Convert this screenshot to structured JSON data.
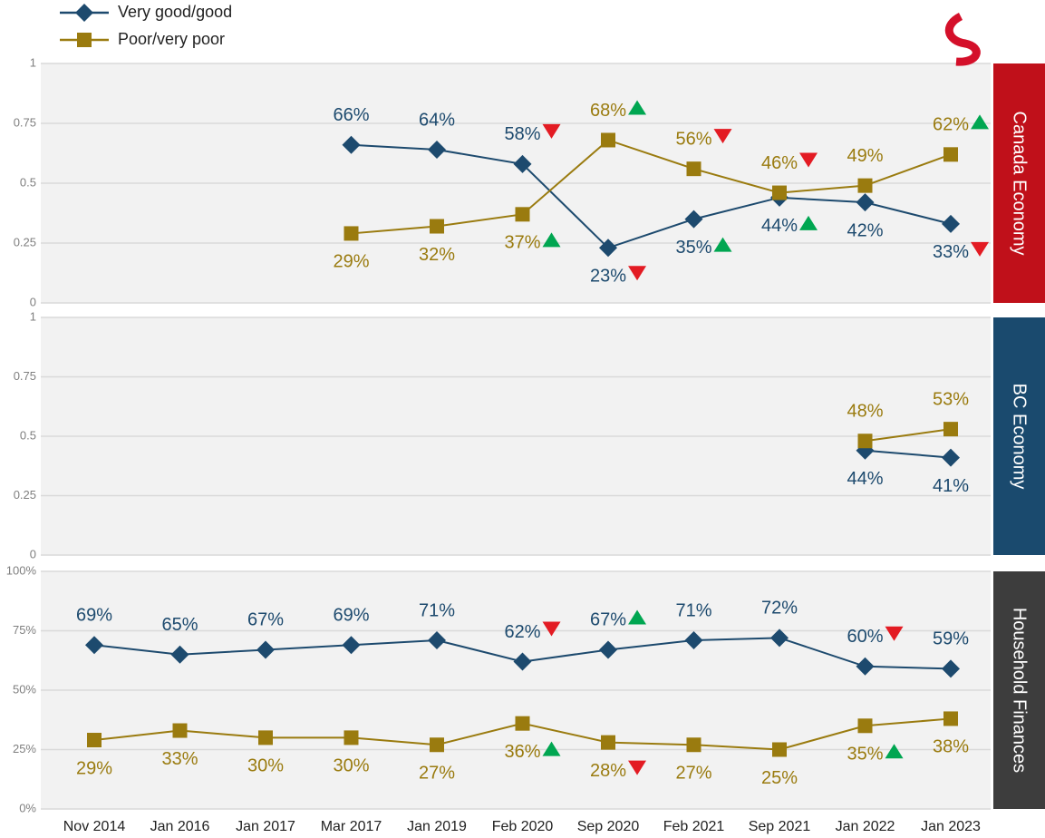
{
  "chart_data": [
    {
      "type": "line",
      "title": "Canada Economy",
      "side_color": "#c0101a",
      "ylim": [
        0,
        1
      ],
      "yticks": [
        0,
        0.25,
        0.5,
        0.75,
        1
      ],
      "grid": true,
      "series": [
        {
          "name": "Very good/good",
          "color": "#1d4a6e",
          "marker": "diamond",
          "values": [
            null,
            null,
            null,
            0.66,
            0.64,
            0.58,
            0.23,
            0.35,
            0.44,
            0.42,
            0.33
          ],
          "value_labels": [
            null,
            null,
            null,
            "66%",
            "64%",
            "58%",
            "23%",
            "35%",
            "44%",
            "42%",
            "33%"
          ],
          "trend": [
            null,
            null,
            null,
            null,
            null,
            "down",
            "down",
            "up",
            "up",
            null,
            "down"
          ]
        },
        {
          "name": "Poor/very poor",
          "color": "#9a7b0f",
          "marker": "square",
          "values": [
            null,
            null,
            null,
            0.29,
            0.32,
            0.37,
            0.68,
            0.56,
            0.46,
            0.49,
            0.62
          ],
          "value_labels": [
            null,
            null,
            null,
            "29%",
            "32%",
            "37%",
            "68%",
            "56%",
            "46%",
            "49%",
            "62%"
          ],
          "trend": [
            null,
            null,
            null,
            null,
            null,
            "up",
            "up",
            "down",
            "down",
            null,
            "up"
          ]
        }
      ]
    },
    {
      "type": "line",
      "title": "BC Economy",
      "side_color": "#1a4a6e",
      "ylim": [
        0,
        1
      ],
      "yticks": [
        0,
        0.25,
        0.5,
        0.75,
        1
      ],
      "grid": true,
      "series": [
        {
          "color": "#1d4a6e",
          "marker": "diamond",
          "values": [
            null,
            null,
            null,
            null,
            null,
            null,
            null,
            null,
            null,
            0.44,
            0.41
          ],
          "value_labels": [
            null,
            null,
            null,
            null,
            null,
            null,
            null,
            null,
            null,
            "44%",
            "41%"
          ]
        },
        {
          "color": "#9a7b0f",
          "marker": "square",
          "values": [
            null,
            null,
            null,
            null,
            null,
            null,
            null,
            null,
            null,
            0.48,
            0.53
          ],
          "value_labels": [
            null,
            null,
            null,
            null,
            null,
            null,
            null,
            null,
            null,
            "48%",
            "53%"
          ]
        }
      ]
    },
    {
      "type": "line",
      "title": "Household Finances",
      "side_color": "#3d3d3d",
      "categories": [
        "Nov 2014",
        "Jan 2016",
        "Jan 2017",
        "Mar 2017",
        "Jan 2019",
        "Feb 2020",
        "Sep 2020",
        "Feb 2021",
        "Sep 2021",
        "Jan 2022",
        "Jan 2023"
      ],
      "ylim": [
        0,
        100
      ],
      "yticks": [
        {
          "value": 0,
          "label": "0%"
        },
        {
          "value": 25,
          "label": "25%"
        },
        {
          "value": 50,
          "label": "50%"
        },
        {
          "value": 75,
          "label": "75%"
        },
        {
          "value": 100,
          "label": "100%"
        }
      ],
      "grid": true,
      "series": [
        {
          "color": "#1d4a6e",
          "marker": "diamond",
          "values": [
            69,
            65,
            67,
            69,
            71,
            62,
            67,
            71,
            72,
            60,
            59
          ],
          "value_labels": [
            "69%",
            "65%",
            "67%",
            "69%",
            "71%",
            "62%",
            "67%",
            "71%",
            "72%",
            "60%",
            "59%"
          ],
          "trend": [
            null,
            null,
            null,
            null,
            null,
            "down",
            "up",
            null,
            null,
            "down",
            null
          ]
        },
        {
          "color": "#9a7b0f",
          "marker": "square",
          "values": [
            29,
            33,
            30,
            30,
            27,
            36,
            28,
            27,
            25,
            35,
            38
          ],
          "value_labels": [
            "29%",
            "33%",
            "30%",
            "30%",
            "27%",
            "36%",
            "28%",
            "27%",
            "25%",
            "35%",
            "38%"
          ],
          "trend": [
            null,
            null,
            null,
            null,
            null,
            "up",
            "down",
            null,
            null,
            "up",
            null
          ]
        }
      ]
    }
  ]
}
